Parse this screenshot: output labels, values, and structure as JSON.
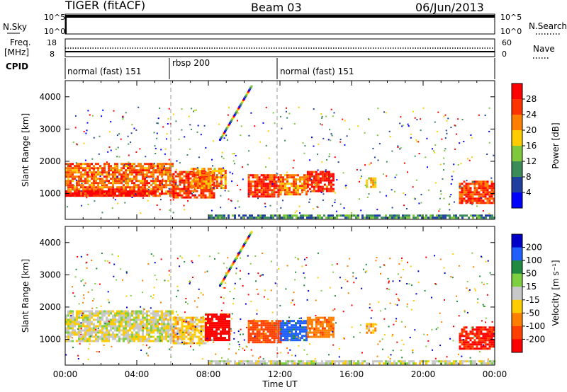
{
  "header": {
    "station": "TIGER (fitACF)",
    "beam": "Beam 03",
    "date": "06/Jun/2013"
  },
  "sky_panel": {
    "left_label": "N.Sky",
    "right_label": "N.Search",
    "left_ticks": [
      "10^5",
      "10^0"
    ],
    "right_ticks": [
      "10^5",
      "10^0"
    ]
  },
  "freq_panel": {
    "left_label_1": "Freq.",
    "left_label_2": "[MHz]",
    "right_label": "Nave",
    "left_ticks": [
      "18",
      "8"
    ],
    "right_ticks": [
      "60",
      "0"
    ]
  },
  "cpid": {
    "label": "CPID",
    "segments": [
      {
        "label": "normal (fast) 151",
        "start_hour": 0,
        "end_hour": 6
      },
      {
        "label": "rbsp 200",
        "start_hour": 6,
        "end_hour": 12
      },
      {
        "label": "normal (fast) 151",
        "start_hour": 12,
        "end_hour": 24
      }
    ]
  },
  "power_panel": {
    "ylabel": "Slant Range [km]",
    "colorbar_label": "Power [dB]",
    "colorbar_ticks": [
      "28",
      "24",
      "20",
      "16",
      "12",
      "8",
      "4"
    ],
    "colorbar_colors": [
      "#ff0000",
      "#ff3300",
      "#ff8000",
      "#ffcc00",
      "#7fc83c",
      "#3c8c5a",
      "#2040a0",
      "#0000ff"
    ]
  },
  "velocity_panel": {
    "ylabel": "Slant Range [km]",
    "colorbar_label": "Velocity [m s⁻¹]",
    "colorbar_ticks": [
      "200",
      "100",
      "50",
      "15",
      "-15",
      "-50",
      "-100",
      "-200"
    ],
    "colorbar_colors": [
      "#0000c8",
      "#2060ff",
      "#208a40",
      "#7fd040",
      "#c8c8c8",
      "#ffcc00",
      "#ff8000",
      "#ff4000",
      "#ff0000"
    ]
  },
  "x_axis": {
    "label": "Time UT",
    "ticks": [
      "00:00",
      "04:00",
      "08:00",
      "12:00",
      "16:00",
      "20:00",
      "00:00"
    ]
  },
  "chart_data": {
    "type": "heatmap",
    "title": "TIGER (fitACF) Beam 03 06/Jun/2013",
    "xlabel": "Time UT",
    "ylabel": "Slant Range [km]",
    "x_range_hours": [
      0,
      24
    ],
    "y_range_km": [
      200,
      4500
    ],
    "y_ticks_km": [
      1000,
      2000,
      3000,
      4000
    ],
    "power_colorbar_range_db": [
      0,
      32
    ],
    "velocity_colorbar_range_ms": [
      -250,
      250
    ],
    "power_echoes": [
      {
        "t0": 0.0,
        "t1": 6.0,
        "r0": 950,
        "r1": 1950,
        "power_db": 24
      },
      {
        "t0": 0.0,
        "t1": 5.0,
        "r0": 950,
        "r1": 1100,
        "power_db": 30
      },
      {
        "t0": 6.0,
        "t1": 8.3,
        "r0": 900,
        "r1": 1700,
        "power_db": 26
      },
      {
        "t0": 7.0,
        "t1": 9.0,
        "r0": 1200,
        "r1": 1800,
        "power_db": 22
      },
      {
        "t0": 10.2,
        "t1": 12.0,
        "r0": 900,
        "r1": 1600,
        "power_db": 27
      },
      {
        "t0": 12.0,
        "t1": 13.5,
        "r0": 1000,
        "r1": 1600,
        "power_db": 22
      },
      {
        "t0": 13.5,
        "t1": 15.0,
        "r0": 1100,
        "r1": 1700,
        "power_db": 28
      },
      {
        "t0": 16.8,
        "t1": 17.3,
        "r0": 1200,
        "r1": 1500,
        "power_db": 18
      },
      {
        "t0": 22.0,
        "t1": 24.0,
        "r0": 700,
        "r1": 1400,
        "power_db": 26
      },
      {
        "t0": 8.0,
        "t1": 24.0,
        "r0": 250,
        "r1": 350,
        "power_db": 10
      }
    ],
    "velocity_echoes": [
      {
        "t0": 0.0,
        "t1": 6.0,
        "r0": 950,
        "r1": 1900,
        "velocity_ms": -5
      },
      {
        "t0": 6.0,
        "t1": 8.0,
        "r0": 900,
        "r1": 1700,
        "velocity_ms": -30
      },
      {
        "t0": 7.8,
        "t1": 9.2,
        "r0": 1000,
        "r1": 1800,
        "velocity_ms": -250
      },
      {
        "t0": 10.2,
        "t1": 12.0,
        "r0": 900,
        "r1": 1600,
        "velocity_ms": -120
      },
      {
        "t0": 12.0,
        "t1": 13.5,
        "r0": 1000,
        "r1": 1600,
        "velocity_ms": 120
      },
      {
        "t0": 13.5,
        "t1": 15.0,
        "r0": 1100,
        "r1": 1700,
        "velocity_ms": -80
      },
      {
        "t0": 16.8,
        "t1": 17.3,
        "r0": 1200,
        "r1": 1500,
        "velocity_ms": -40
      },
      {
        "t0": 22.0,
        "t1": 24.0,
        "r0": 700,
        "r1": 1400,
        "velocity_ms": -200
      },
      {
        "t0": 8.0,
        "t1": 24.0,
        "r0": 250,
        "r1": 350,
        "velocity_ms": 0
      }
    ]
  }
}
